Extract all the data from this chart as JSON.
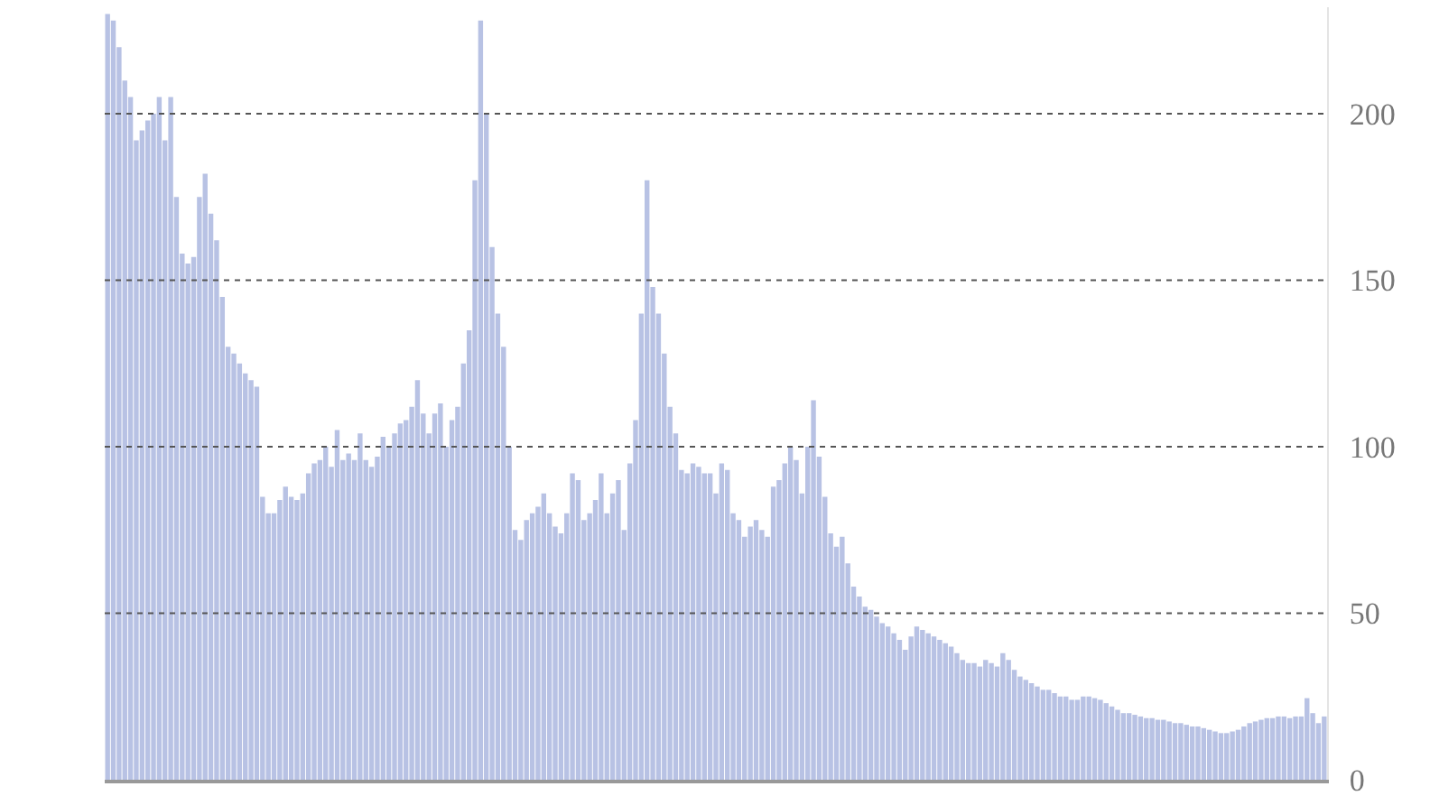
{
  "chart_data": {
    "type": "bar",
    "categories": [
      null,
      null,
      null,
      null,
      null,
      null,
      null,
      null,
      null,
      null,
      null,
      null,
      null,
      null,
      null,
      null,
      null,
      null,
      null,
      null,
      null,
      null,
      null,
      null,
      null,
      null,
      null,
      null,
      null,
      null,
      null,
      null,
      null,
      null,
      null,
      null,
      null,
      null,
      null,
      null,
      null,
      null,
      null,
      null,
      null,
      null,
      null,
      null,
      null,
      null,
      null,
      null,
      null,
      null,
      null,
      null,
      null,
      null,
      null,
      null,
      null,
      null,
      null,
      null,
      null,
      null,
      null,
      null,
      null,
      null,
      null,
      null,
      null,
      null,
      null,
      null,
      null,
      null,
      null,
      null,
      null,
      null,
      null,
      null,
      null,
      null,
      null,
      null,
      null,
      null,
      null,
      null,
      null,
      null,
      null,
      null,
      null,
      null,
      null,
      null,
      null,
      null,
      null,
      null,
      null,
      null,
      null,
      null,
      null,
      null,
      null,
      null,
      null,
      null,
      null,
      null,
      null,
      null,
      null,
      null,
      null,
      null,
      null,
      null,
      null,
      null,
      null,
      null,
      null,
      null,
      null,
      null,
      null,
      null,
      null,
      null,
      null,
      null,
      null,
      null,
      null,
      null,
      null,
      null,
      null,
      null,
      null,
      null,
      null,
      null,
      null,
      null,
      null,
      null,
      null,
      null,
      null,
      null,
      null,
      null,
      null,
      null,
      null,
      null,
      null,
      null,
      null,
      null,
      null,
      null,
      null,
      null,
      null,
      null,
      null,
      null,
      null,
      null,
      null,
      null,
      null,
      null,
      null,
      null,
      null,
      null,
      null,
      null,
      null,
      null,
      null,
      null,
      null,
      null,
      null,
      null,
      null,
      null,
      null,
      null,
      null,
      null,
      null,
      null,
      null,
      null,
      null,
      null,
      null,
      null,
      null,
      null,
      null
    ],
    "values": [
      230,
      228,
      220,
      210,
      205,
      192,
      195,
      198,
      200,
      205,
      192,
      205,
      175,
      158,
      155,
      157,
      175,
      182,
      170,
      162,
      145,
      130,
      128,
      125,
      122,
      120,
      118,
      85,
      80,
      80,
      84,
      88,
      85,
      84,
      86,
      92,
      95,
      96,
      100,
      94,
      105,
      96,
      98,
      96,
      104,
      96,
      94,
      97,
      103,
      100,
      104,
      107,
      108,
      112,
      120,
      110,
      104,
      110,
      113,
      100,
      108,
      112,
      125,
      135,
      180,
      228,
      200,
      160,
      140,
      130,
      100,
      75,
      72,
      78,
      80,
      82,
      86,
      80,
      76,
      74,
      80,
      92,
      90,
      78,
      80,
      84,
      92,
      80,
      86,
      90,
      75,
      95,
      108,
      140,
      180,
      148,
      140,
      128,
      112,
      104,
      93,
      92,
      95,
      94,
      92,
      92,
      86,
      95,
      93,
      80,
      78,
      73,
      76,
      78,
      75,
      73,
      88,
      90,
      95,
      100,
      96,
      86,
      100,
      114,
      97,
      85,
      74,
      70,
      73,
      65,
      58,
      55,
      52,
      51,
      49,
      47,
      46,
      44,
      42,
      39,
      43,
      46,
      45,
      44,
      43,
      42,
      41,
      40,
      38,
      36,
      35,
      35,
      34,
      36,
      35,
      34,
      38,
      36,
      33,
      31,
      30,
      29,
      28,
      27,
      27,
      26,
      25,
      25,
      24,
      24,
      25,
      25,
      24.5,
      24,
      23,
      22,
      21,
      20,
      20,
      19.5,
      19,
      18.5,
      18.5,
      18,
      18,
      17.5,
      17,
      17,
      16.5,
      16,
      16,
      15.5,
      15,
      14.5,
      14,
      14,
      14.5,
      15,
      16,
      17,
      17.5,
      18,
      18.5,
      18.5,
      19,
      19,
      18.5,
      19,
      19,
      24.5,
      20,
      17,
      19
    ],
    "color": "#b8c2e4",
    "ylim": [
      0,
      232
    ],
    "yticks": [
      0,
      50,
      100,
      150,
      200
    ],
    "grid": "y",
    "tick_labels": "y"
  }
}
